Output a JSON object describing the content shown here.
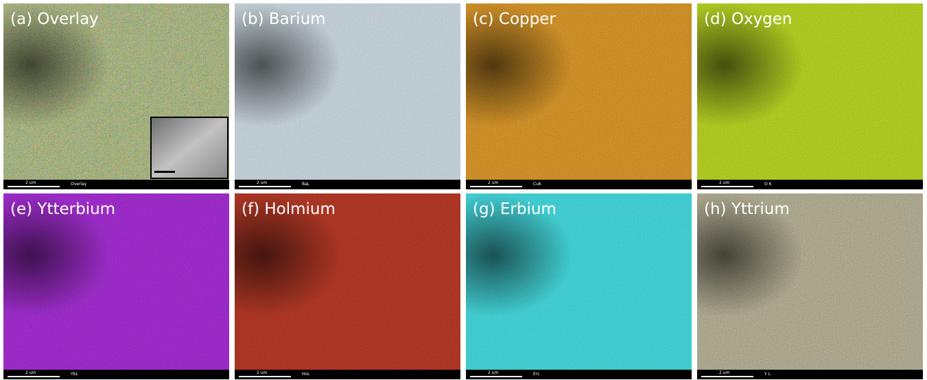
{
  "panels": [
    {
      "title": "(a) Overlay",
      "scale": "2 um",
      "element": "Overlay"
    },
    {
      "title": "(b) Barium",
      "scale": "2 um",
      "element": "BaL"
    },
    {
      "title": "(c) Copper",
      "scale": "2 um",
      "element": "CuK"
    },
    {
      "title": "(d) Oxygen",
      "scale": "2 um",
      "element": "O K"
    },
    {
      "title": "(e) Ytterbium",
      "scale": "2 um",
      "element": "YbL"
    },
    {
      "title": "(f) Holmium",
      "scale": "2 um",
      "element": "HoL"
    },
    {
      "title": "(g) Erbium",
      "scale": "2 um",
      "element": "ErL"
    },
    {
      "title": "(h) Yttrium",
      "scale": "2 um",
      "element": "Y L"
    }
  ]
}
